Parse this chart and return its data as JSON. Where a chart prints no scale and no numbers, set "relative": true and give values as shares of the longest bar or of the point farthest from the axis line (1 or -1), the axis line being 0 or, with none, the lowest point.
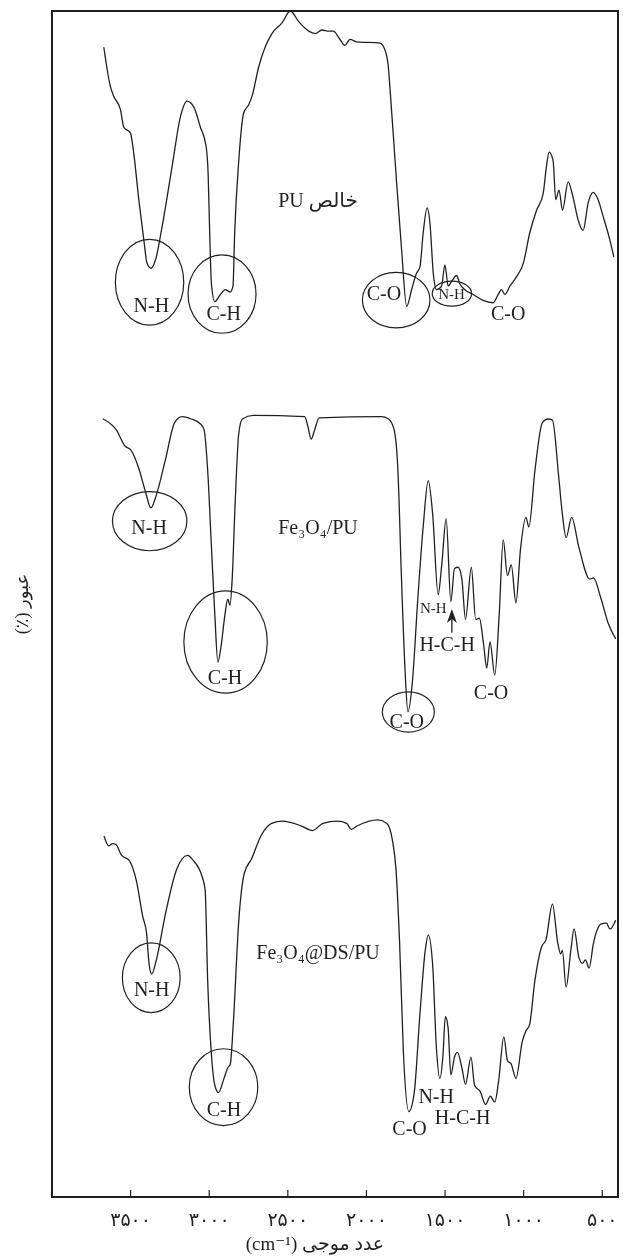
{
  "chart_data": {
    "type": "line",
    "relative": true,
    "xlabel": "عدد موجی (cm⁻¹)",
    "ylabel": "عبور (٪)",
    "xlim": [
      4000,
      400
    ],
    "xticks": [
      {
        "value": 3500,
        "label": "۳۵۰۰"
      },
      {
        "value": 3000,
        "label": "۳۰۰۰"
      },
      {
        "value": 2500,
        "label": "۲۵۰۰"
      },
      {
        "value": 2000,
        "label": "۲۰۰۰"
      },
      {
        "value": 1500,
        "label": "۱۵۰۰"
      },
      {
        "value": 1000,
        "label": "۱۰۰۰"
      },
      {
        "value": 500,
        "label": "۵۰۰"
      }
    ],
    "series": [
      {
        "name": "PU خالص",
        "color": "#231f20",
        "x": [
          3670,
          3628,
          3607,
          3565,
          3543,
          3501,
          3480,
          3448,
          3416,
          3395,
          3370,
          3342,
          3300,
          3236,
          3183,
          3141,
          3098,
          3056,
          3020,
          3007,
          2997,
          2986,
          2965,
          2929,
          2897,
          2866,
          2849,
          2838,
          2812,
          2781,
          2749,
          2728,
          2685,
          2643,
          2601,
          2537,
          2484,
          2431,
          2367,
          2325,
          2283,
          2240,
          2211,
          2168,
          2137,
          2105,
          2062,
          1914,
          1882,
          1861,
          1851,
          1830,
          1808,
          1776,
          1744,
          1713,
          1681,
          1660,
          1639,
          1614,
          1596,
          1575,
          1554,
          1522,
          1501,
          1480,
          1458,
          1427,
          1406,
          1374,
          1321,
          1258,
          1194,
          1162,
          1141,
          1120,
          1088,
          1045,
          1003,
          961,
          918,
          876,
          855,
          838,
          813,
          796,
          775,
          753,
          717,
          686,
          654,
          622,
          590,
          558,
          527,
          495,
          452,
          427
        ],
        "values": [
          0.969,
          0.936,
          0.928,
          0.917,
          0.902,
          0.897,
          0.88,
          0.841,
          0.807,
          0.787,
          0.783,
          0.79,
          0.818,
          0.869,
          0.911,
          0.924,
          0.919,
          0.902,
          0.886,
          0.863,
          0.813,
          0.77,
          0.755,
          0.761,
          0.765,
          0.763,
          0.768,
          0.813,
          0.874,
          0.914,
          0.921,
          0.928,
          0.953,
          0.97,
          0.981,
          0.99,
          1,
          0.991,
          0.983,
          0.981,
          0.984,
          0.983,
          0.983,
          0.976,
          0.971,
          0.976,
          0.974,
          0.973,
          0.967,
          0.953,
          0.936,
          0.897,
          0.855,
          0.798,
          0.751,
          0.765,
          0.779,
          0.784,
          0.813,
          0.834,
          0.821,
          0.779,
          0.765,
          0.768,
          0.786,
          0.768,
          0.772,
          0.777,
          0.77,
          0.765,
          0.761,
          0.756,
          0.754,
          0.761,
          0.765,
          0.761,
          0.768,
          0.776,
          0.787,
          0.813,
          0.832,
          0.846,
          0.869,
          0.881,
          0.874,
          0.841,
          0.849,
          0.832,
          0.856,
          0.843,
          0.824,
          0.815,
          0.838,
          0.847,
          0.841,
          0.827,
          0.807,
          0.793
        ]
      },
      {
        "name": "Fe₃O₄/PU",
        "color": "#231f20",
        "x": [
          3674,
          3592,
          3534,
          3499,
          3452,
          3406,
          3371,
          3336,
          3278,
          3220,
          3173,
          3115,
          3057,
          3033,
          3010,
          2987,
          2964,
          2945,
          2924,
          2901,
          2882,
          2868,
          2854,
          2836,
          2812,
          2789,
          2719,
          2393,
          2371,
          2352,
          2329,
          2301,
          1905,
          1859,
          1824,
          1800,
          1777,
          1754,
          1736,
          1708,
          1673,
          1638,
          1607,
          1579,
          1544,
          1521,
          1493,
          1463,
          1440,
          1417,
          1393,
          1370,
          1333,
          1305,
          1282,
          1254,
          1235,
          1214,
          1184,
          1156,
          1130,
          1103,
          1079,
          1049,
          1021,
          986,
          967,
          928,
          881,
          846,
          817,
          777,
          754,
          730,
          695,
          649,
          579,
          556,
          509,
          463,
          416
        ],
        "values": [
          0.656,
          0.647,
          0.633,
          0.63,
          0.616,
          0.595,
          0.581,
          0.592,
          0.622,
          0.653,
          0.658,
          0.656,
          0.652,
          0.647,
          0.613,
          0.551,
          0.49,
          0.451,
          0.465,
          0.49,
          0.504,
          0.499,
          0.521,
          0.582,
          0.644,
          0.656,
          0.659,
          0.658,
          0.649,
          0.639,
          0.647,
          0.657,
          0.658,
          0.656,
          0.647,
          0.613,
          0.521,
          0.443,
          0.409,
          0.434,
          0.505,
          0.567,
          0.604,
          0.576,
          0.508,
          0.533,
          0.572,
          0.502,
          0.53,
          0.531,
          0.521,
          0.487,
          0.531,
          0.487,
          0.488,
          0.465,
          0.446,
          0.468,
          0.44,
          0.49,
          0.554,
          0.524,
          0.533,
          0.501,
          0.545,
          0.573,
          0.565,
          0.613,
          0.653,
          0.656,
          0.655,
          0.607,
          0.576,
          0.556,
          0.573,
          0.548,
          0.521,
          0.522,
          0.505,
          0.484,
          0.471
        ]
      },
      {
        "name": "Fe₃O₄@DS/PU",
        "color": "#231f20",
        "x": [
          3668,
          3639,
          3615,
          3592,
          3557,
          3510,
          3464,
          3422,
          3399,
          3382,
          3366,
          3336,
          3278,
          3208,
          3138,
          3103,
          3045,
          3026,
          3010,
          2987,
          2964,
          2941,
          2906,
          2882,
          2866,
          2847,
          2812,
          2777,
          2731,
          2673,
          2603,
          2533,
          2417,
          2343,
          2277,
          2184,
          2126,
          2096,
          2057,
          1928,
          1870,
          1835,
          1812,
          1789,
          1765,
          1730,
          1696,
          1661,
          1626,
          1607,
          1579,
          1556,
          1533,
          1514,
          1498,
          1481,
          1463,
          1440,
          1421,
          1393,
          1370,
          1335,
          1312,
          1277,
          1242,
          1212,
          1184,
          1160,
          1126,
          1103,
          1079,
          1049,
          1009,
          986,
          963,
          928,
          886,
          858,
          817,
          783,
          765,
          754,
          730,
          700,
          679,
          649,
          626,
          607,
          584,
          556,
          509,
          474,
          451,
          416
        ],
        "values": [
          0.304,
          0.296,
          0.298,
          0.297,
          0.288,
          0.284,
          0.267,
          0.236,
          0.223,
          0.196,
          0.188,
          0.2,
          0.239,
          0.276,
          0.288,
          0.284,
          0.27,
          0.259,
          0.183,
          0.122,
          0.094,
          0.088,
          0.1,
          0.109,
          0.112,
          0.146,
          0.233,
          0.273,
          0.285,
          0.304,
          0.315,
          0.317,
          0.313,
          0.309,
          0.315,
          0.317,
          0.315,
          0.31,
          0.313,
          0.318,
          0.315,
          0.301,
          0.276,
          0.214,
          0.122,
          0.072,
          0.088,
          0.152,
          0.208,
          0.221,
          0.196,
          0.128,
          0.1,
          0.118,
          0.152,
          0.143,
          0.103,
          0.118,
          0.122,
          0.109,
          0.095,
          0.118,
          0.094,
          0.089,
          0.078,
          0.085,
          0.08,
          0.097,
          0.135,
          0.115,
          0.112,
          0.1,
          0.131,
          0.14,
          0.145,
          0.183,
          0.211,
          0.217,
          0.247,
          0.214,
          0.205,
          0.208,
          0.177,
          0.208,
          0.226,
          0.202,
          0.197,
          0.2,
          0.193,
          0.214,
          0.23,
          0.231,
          0.226,
          0.233
        ]
      }
    ],
    "annotations": [
      {
        "text": "N-H",
        "x": 3370,
        "y": 0.783
      },
      {
        "text": "C-H",
        "x": 2965,
        "y": 0.755
      },
      {
        "text": "C-O",
        "x": 1744,
        "y": 0.751
      },
      {
        "text": "N-H",
        "x": 1480,
        "y": 0.768
      },
      {
        "text": "C-O",
        "x": 1194,
        "y": 0.754
      },
      {
        "text": "N-H",
        "x": 3371,
        "y": 0.581
      },
      {
        "text": "C-H",
        "x": 2945,
        "y": 0.451
      },
      {
        "text": "C-O",
        "x": 1736,
        "y": 0.409
      },
      {
        "text": "N-H",
        "x": 1544,
        "y": 0.508
      },
      {
        "text": "H-C-H",
        "x": 1463,
        "y": 0.502
      },
      {
        "text": "C-O",
        "x": 1184,
        "y": 0.44
      },
      {
        "text": "N-H",
        "x": 3366,
        "y": 0.188
      },
      {
        "text": "C-H",
        "x": 2941,
        "y": 0.088
      },
      {
        "text": "C-O",
        "x": 1730,
        "y": 0.072
      },
      {
        "text": "N-H",
        "x": 1533,
        "y": 0.1
      },
      {
        "text": "H-C-H",
        "x": 1463,
        "y": 0.103
      }
    ]
  }
}
